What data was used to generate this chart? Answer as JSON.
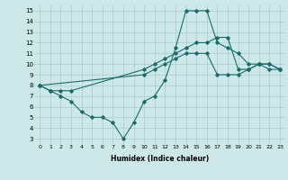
{
  "xlabel": "Humidex (Indice chaleur)",
  "xlim": [
    -0.5,
    23.5
  ],
  "ylim": [
    2.5,
    15.5
  ],
  "xticks": [
    0,
    1,
    2,
    3,
    4,
    5,
    6,
    7,
    8,
    9,
    10,
    11,
    12,
    13,
    14,
    15,
    16,
    17,
    18,
    19,
    20,
    21,
    22,
    23
  ],
  "yticks": [
    3,
    4,
    5,
    6,
    7,
    8,
    9,
    10,
    11,
    12,
    13,
    14,
    15
  ],
  "bg_color": "#cce8e8",
  "grid_color": "#aacaca",
  "line_color": "#1a6b6b",
  "line1_x": [
    0,
    1,
    2,
    3,
    4,
    5,
    6,
    7,
    8,
    9,
    10,
    11,
    12,
    13,
    14,
    15,
    16,
    17,
    18,
    19,
    20,
    21,
    22,
    23
  ],
  "line1_y": [
    8,
    7.5,
    7,
    6.5,
    5.5,
    5,
    5,
    4.5,
    3,
    4.5,
    6.5,
    7,
    8.5,
    11.5,
    15,
    15,
    15,
    12,
    11.5,
    11,
    10,
    10,
    9.5,
    9.5
  ],
  "line2_x": [
    0,
    1,
    2,
    3,
    10,
    11,
    12,
    13,
    14,
    15,
    16,
    17,
    18,
    19,
    20,
    21,
    22,
    23
  ],
  "line2_y": [
    8,
    7.5,
    7.5,
    7.5,
    9.5,
    10,
    10.5,
    11,
    11.5,
    12,
    12,
    12.5,
    12.5,
    9.5,
    9.5,
    10,
    10,
    9.5
  ],
  "line3_x": [
    0,
    10,
    11,
    12,
    13,
    14,
    15,
    16,
    17,
    18,
    19,
    20,
    21,
    22,
    23
  ],
  "line3_y": [
    8,
    9,
    9.5,
    10,
    10.5,
    11,
    11,
    11,
    9,
    9,
    9,
    9.5,
    10,
    10,
    9.5
  ]
}
